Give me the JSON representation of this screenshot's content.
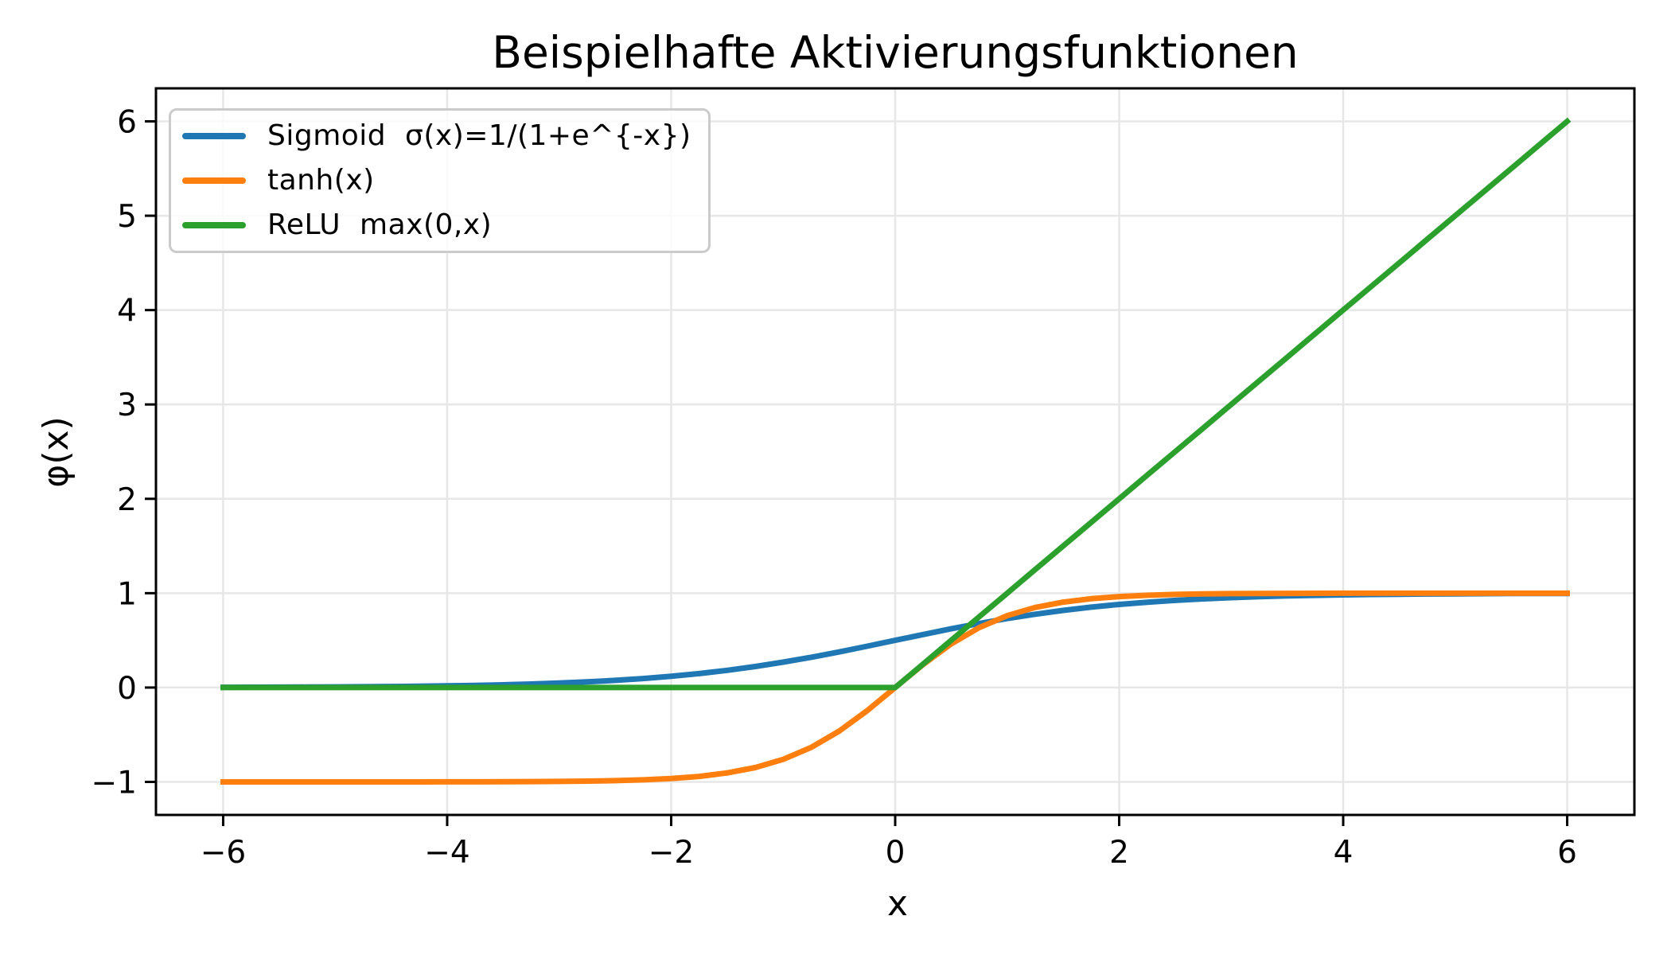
{
  "chart_data": {
    "type": "line",
    "title": "Beispielhafte Aktivierungsfunktionen",
    "xlabel": "x",
    "ylabel": "φ(x)",
    "xlim": [
      -6.6,
      6.6
    ],
    "ylim": [
      -1.35,
      6.35
    ],
    "xtick_values": [
      -6,
      -4,
      -2,
      0,
      2,
      4,
      6
    ],
    "xtick_labels": [
      "−6",
      "−4",
      "−2",
      "0",
      "2",
      "4",
      "6"
    ],
    "ytick_values": [
      -1,
      0,
      1,
      2,
      3,
      4,
      5,
      6
    ],
    "ytick_labels": [
      "−1",
      "0",
      "1",
      "2",
      "3",
      "4",
      "5",
      "6"
    ],
    "grid": true,
    "grid_color": "#e7e7e7",
    "spine_color": "#000000",
    "background_color": "#ffffff",
    "legend_position": "upper left",
    "x": [
      -6,
      -5.75,
      -5.5,
      -5.25,
      -5,
      -4.75,
      -4.5,
      -4.25,
      -4,
      -3.75,
      -3.5,
      -3.25,
      -3,
      -2.75,
      -2.5,
      -2.25,
      -2,
      -1.75,
      -1.5,
      -1.25,
      -1,
      -0.75,
      -0.5,
      -0.25,
      0,
      0.25,
      0.5,
      0.75,
      1,
      1.25,
      1.5,
      1.75,
      2,
      2.25,
      2.5,
      2.75,
      3,
      3.25,
      3.5,
      3.75,
      4,
      4.25,
      4.5,
      4.75,
      5,
      5.25,
      5.5,
      5.75,
      6
    ],
    "series": [
      {
        "id": "sigmoid",
        "name": "Sigmoid  σ(x)=1/(1+e^{-x})",
        "color": "#1f77b4",
        "values": [
          0.0025,
          0.0032,
          0.0041,
          0.0052,
          0.0067,
          0.0086,
          0.011,
          0.0141,
          0.018,
          0.0229,
          0.0293,
          0.0373,
          0.0474,
          0.0601,
          0.0759,
          0.0953,
          0.1192,
          0.148,
          0.1824,
          0.2227,
          0.2689,
          0.3208,
          0.3775,
          0.4378,
          0.5,
          0.5622,
          0.6225,
          0.6792,
          0.7311,
          0.7773,
          0.8176,
          0.852,
          0.8808,
          0.9047,
          0.9241,
          0.9399,
          0.9526,
          0.9627,
          0.9707,
          0.9771,
          0.982,
          0.9859,
          0.989,
          0.9914,
          0.9933,
          0.9948,
          0.9959,
          0.9968,
          0.9975
        ]
      },
      {
        "id": "tanh",
        "name": "tanh(x)",
        "color": "#ff7f0e",
        "values": [
          -1,
          -1,
          -1,
          -0.9999,
          -0.9999,
          -0.9999,
          -0.9998,
          -0.9996,
          -0.9993,
          -0.9989,
          -0.9982,
          -0.997,
          -0.9951,
          -0.9919,
          -0.9866,
          -0.978,
          -0.964,
          -0.9414,
          -0.9051,
          -0.8483,
          -0.7616,
          -0.6351,
          -0.4621,
          -0.2449,
          0,
          0.2449,
          0.4621,
          0.6351,
          0.7616,
          0.8483,
          0.9051,
          0.9414,
          0.964,
          0.978,
          0.9866,
          0.9919,
          0.9951,
          0.997,
          0.9982,
          0.9989,
          0.9993,
          0.9996,
          0.9998,
          0.9999,
          0.9999,
          0.9999,
          1,
          1,
          1
        ]
      },
      {
        "id": "relu",
        "name": "ReLU  max(0,x)",
        "color": "#2ca02c",
        "values": [
          0,
          0,
          0,
          0,
          0,
          0,
          0,
          0,
          0,
          0,
          0,
          0,
          0,
          0,
          0,
          0,
          0,
          0,
          0,
          0,
          0,
          0,
          0,
          0,
          0,
          0.25,
          0.5,
          0.75,
          1,
          1.25,
          1.5,
          1.75,
          2,
          2.25,
          2.5,
          2.75,
          3,
          3.25,
          3.5,
          3.75,
          4,
          4.25,
          4.5,
          4.75,
          5,
          5.25,
          5.5,
          5.75,
          6
        ]
      }
    ]
  }
}
